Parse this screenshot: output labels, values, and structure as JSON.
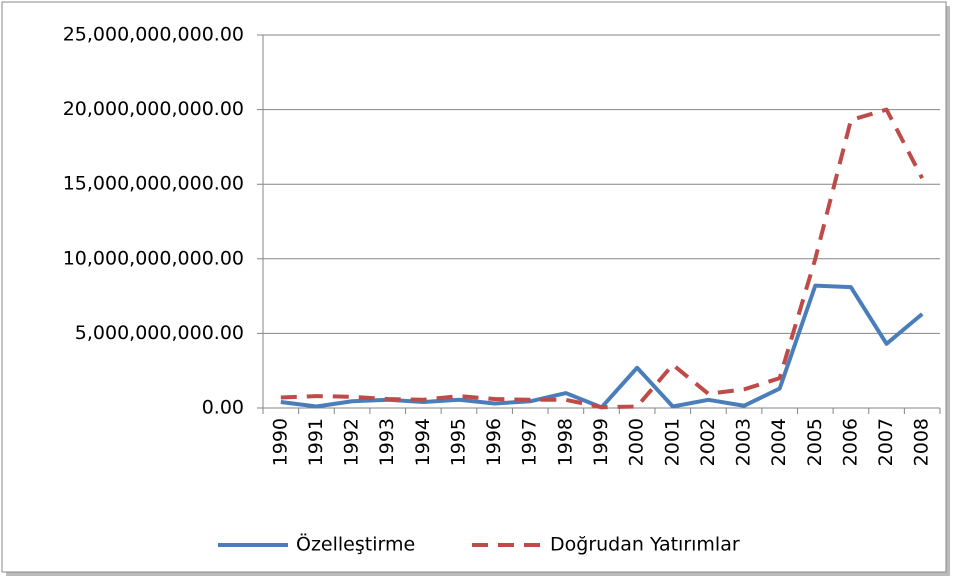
{
  "chart_data": {
    "type": "line",
    "categories": [
      "1990",
      "1991",
      "1992",
      "1993",
      "1994",
      "1995",
      "1996",
      "1997",
      "1998",
      "1999",
      "2000",
      "2001",
      "2002",
      "2003",
      "2004",
      "2005",
      "2006",
      "2007",
      "2008"
    ],
    "series": [
      {
        "name": "Özelleştirme",
        "color": "#4a7ebb",
        "dash": false,
        "values": [
          400000000,
          100000000,
          450000000,
          550000000,
          400000000,
          550000000,
          300000000,
          450000000,
          1000000000,
          40000000,
          2700000000,
          100000000,
          550000000,
          150000000,
          1300000000,
          8200000000,
          8100000000,
          4300000000,
          6300000000
        ]
      },
      {
        "name": "Doğrudan Yatırımlar",
        "color": "#be4b48",
        "dash": true,
        "values": [
          700000000,
          800000000,
          750000000,
          600000000,
          550000000,
          800000000,
          600000000,
          550000000,
          550000000,
          50000000,
          100000000,
          2900000000,
          950000000,
          1250000000,
          2000000000,
          10000000000,
          19300000000,
          20000000000,
          15400000000
        ]
      }
    ],
    "ylim": [
      0,
      25000000000
    ],
    "yticks": [
      {
        "value": 0,
        "label": "0.00"
      },
      {
        "value": 5000000000,
        "label": "5,000,000,000.00"
      },
      {
        "value": 10000000000,
        "label": "10,000,000,000.00"
      },
      {
        "value": 15000000000,
        "label": "15,000,000,000.00"
      },
      {
        "value": 20000000000,
        "label": "20,000,000,000.00"
      },
      {
        "value": 25000000000,
        "label": "25,000,000,000.00"
      }
    ],
    "grid": true,
    "legend": "bottom"
  }
}
